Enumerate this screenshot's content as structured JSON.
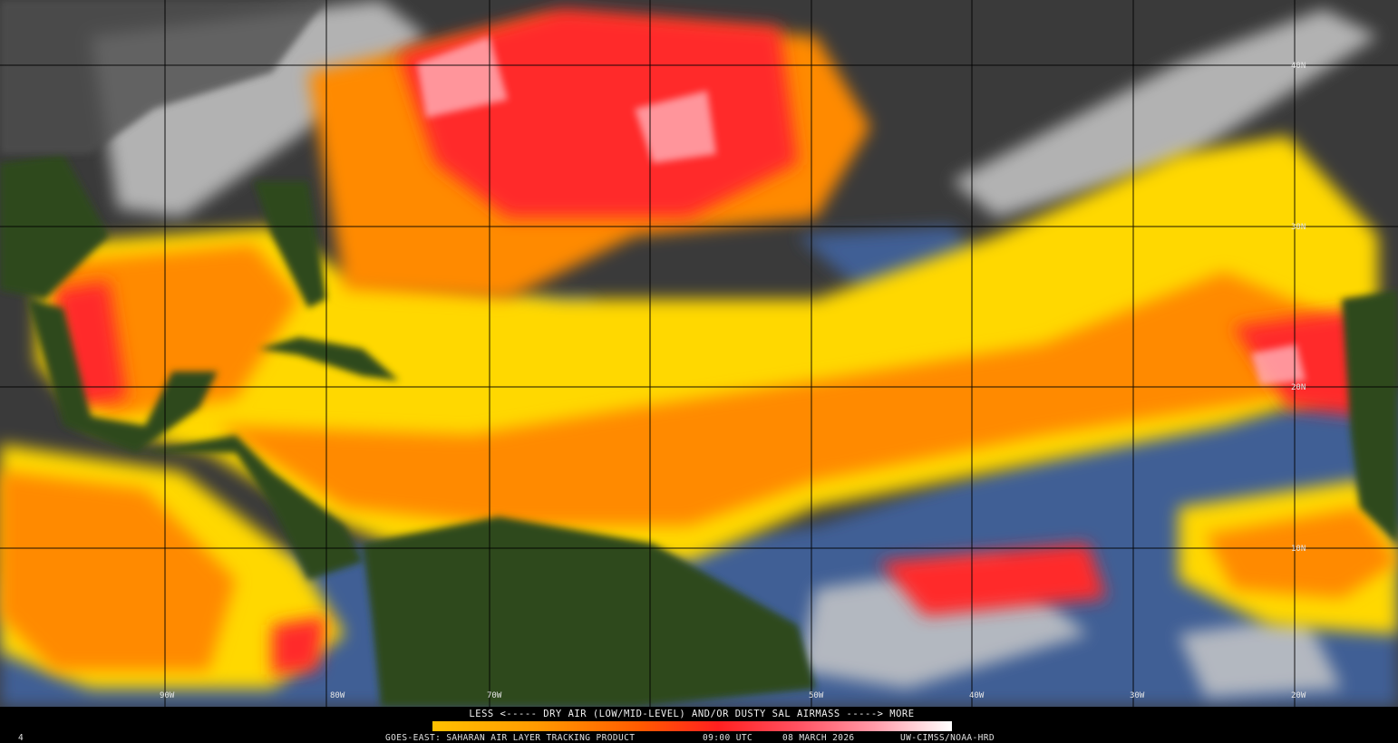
{
  "map": {
    "latitude_labels": [
      "40N",
      "30N",
      "20N",
      "10N"
    ],
    "longitude_labels": [
      "90W",
      "80W",
      "70W",
      "50W",
      "40W",
      "30W",
      "20W"
    ]
  },
  "legend": {
    "caption": "LESS <----- DRY AIR (LOW/MID-LEVEL) AND/OR DUSTY SAL AIRMASS -----> MORE",
    "product": "GOES-EAST: SAHARAN AIR LAYER TRACKING PRODUCT",
    "time": "09:00 UTC",
    "date": "08 MARCH 2026",
    "credit": "UW-CIMSS/NOAA-HRD"
  },
  "corner_label": "4"
}
